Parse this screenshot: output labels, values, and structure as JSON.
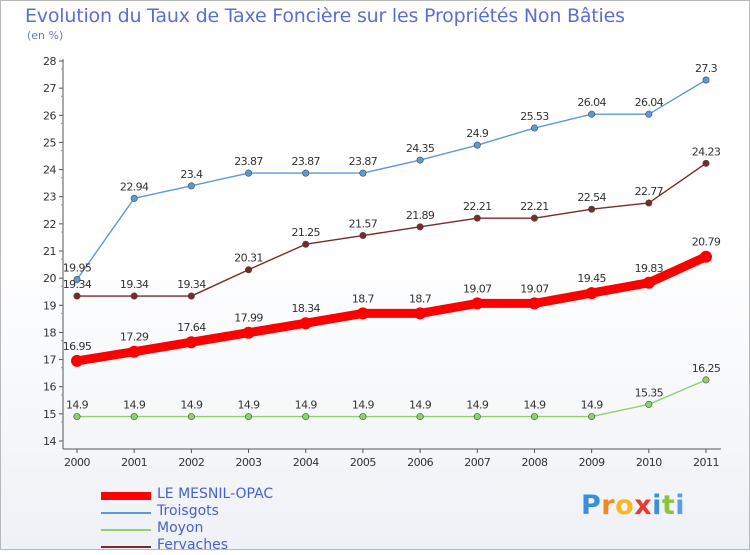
{
  "title": "Evolution du Taux de Taxe Foncière sur les Propriétés Non Bâties",
  "subtitle": "(en %)",
  "logo": {
    "text": "Proxiti",
    "letters": [
      {
        "ch": "P",
        "color": "#3a8fd8"
      },
      {
        "ch": "r",
        "color": "#f08a1c"
      },
      {
        "ch": "o",
        "color": "#f6b81f"
      },
      {
        "ch": "x",
        "color": "#e83c2e"
      },
      {
        "ch": "i",
        "color": "#3a8fd8"
      },
      {
        "ch": "t",
        "color": "#8ac43f"
      },
      {
        "ch": "i",
        "color": "#5aa0e0"
      }
    ]
  },
  "chart_data": {
    "type": "line",
    "title": "Evolution du Taux de Taxe Foncière sur les Propriétés Non Bâties",
    "ylabel": "(en %)",
    "xlabel": "",
    "x": [
      "2000",
      "2001",
      "2002",
      "2003",
      "2004",
      "2005",
      "2006",
      "2007",
      "2008",
      "2009",
      "2010",
      "2011"
    ],
    "ylim": [
      14,
      28
    ],
    "yticks": [
      "14",
      "15",
      "16",
      "17",
      "18",
      "19",
      "20",
      "21",
      "22",
      "23",
      "24",
      "25",
      "26",
      "27",
      "28"
    ],
    "grid": false,
    "legend_position": "bottom-left",
    "series": [
      {
        "name": "LE MESNIL-OPAC",
        "color": "#ff0000",
        "emphasis": true,
        "values": [
          16.95,
          17.29,
          17.64,
          17.99,
          18.34,
          18.7,
          18.7,
          19.07,
          19.07,
          19.45,
          19.83,
          20.79
        ],
        "labels": [
          "16.95",
          "17.29",
          "17.64",
          "17.99",
          "18.34",
          "18.7",
          "18.7",
          "19.07",
          "19.07",
          "19.45",
          "19.83",
          "20.79"
        ]
      },
      {
        "name": "Troisgots",
        "color": "#5b9bd5",
        "emphasis": false,
        "values": [
          19.95,
          22.94,
          23.4,
          23.87,
          23.87,
          23.87,
          24.35,
          24.9,
          25.53,
          26.04,
          26.04,
          27.3
        ],
        "labels": [
          "19.95",
          "22.94",
          "23.4",
          "23.87",
          "23.87",
          "23.87",
          "24.35",
          "24.9",
          "25.53",
          "26.04",
          "26.04",
          "27.3"
        ]
      },
      {
        "name": "Moyon",
        "color": "#8fd16b",
        "emphasis": false,
        "values": [
          14.9,
          14.9,
          14.9,
          14.9,
          14.9,
          14.9,
          14.9,
          14.9,
          14.9,
          14.9,
          15.35,
          16.25
        ],
        "labels": [
          "14.9",
          "14.9",
          "14.9",
          "14.9",
          "14.9",
          "14.9",
          "14.9",
          "14.9",
          "14.9",
          "14.9",
          "15.35",
          "16.25"
        ]
      },
      {
        "name": "Fervaches",
        "color": "#7a2a2a",
        "emphasis": false,
        "values": [
          19.34,
          19.34,
          19.34,
          20.31,
          21.25,
          21.57,
          21.89,
          22.21,
          22.21,
          22.54,
          22.77,
          24.23
        ],
        "labels": [
          "19.34",
          "19.34",
          "19.34",
          "20.31",
          "21.25",
          "21.57",
          "21.89",
          "22.21",
          "22.21",
          "22.54",
          "22.77",
          "24.23"
        ]
      }
    ]
  }
}
